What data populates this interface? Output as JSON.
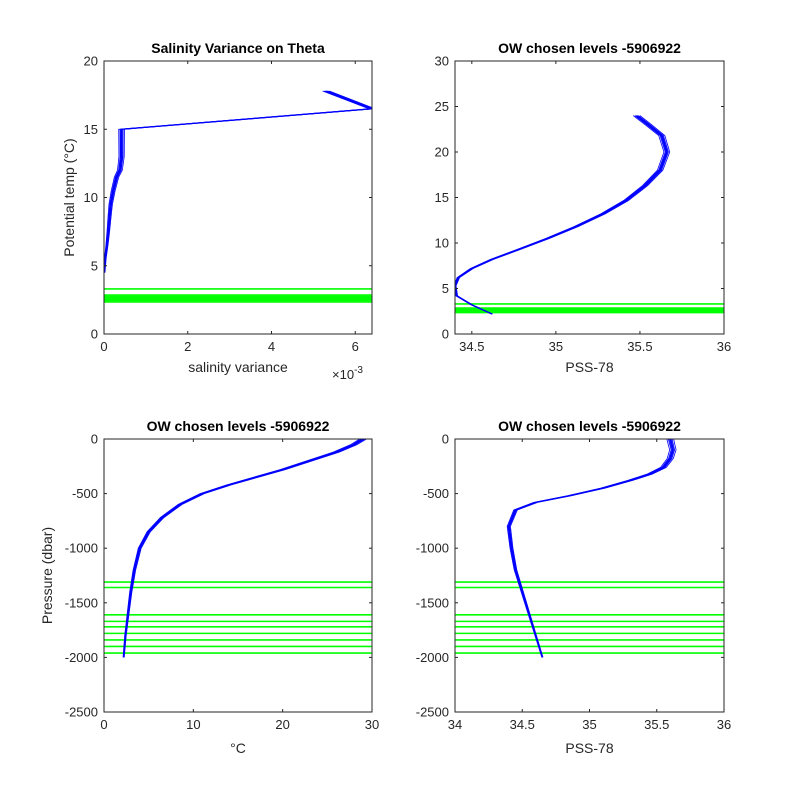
{
  "chart_data": [
    {
      "id": "variance",
      "type": "line",
      "title": "Salinity Variance on Theta",
      "xlabel": "salinity variance",
      "ylabel": "Potential temp (°C)",
      "x_exponent_label": "×10",
      "x_exponent_value": "-3",
      "xlim": [
        0,
        0.0064
      ],
      "ylim": [
        0,
        20
      ],
      "xticks": [
        0,
        0.002,
        0.004,
        0.006
      ],
      "xtick_labels": [
        "0",
        "2",
        "4",
        "6"
      ],
      "yticks": [
        0,
        5,
        10,
        15,
        20
      ],
      "ytick_labels": [
        "0",
        "5",
        "10",
        "15",
        "20"
      ],
      "series": [
        {
          "color": "#0000ff",
          "x": [
            1e-05,
            3e-05,
            7e-05,
            0.0001,
            0.00013,
            0.00016,
            0.00022,
            0.0003,
            0.00038,
            0.00042,
            0.00042,
            0.0064,
            0.0053
          ],
          "y": [
            4.5,
            5.5,
            6.5,
            7.4,
            8.5,
            9.5,
            10.5,
            11.5,
            12.0,
            13.0,
            15.0,
            16.5,
            17.8
          ]
        }
      ],
      "hlines": [
        2.35,
        2.45,
        2.55,
        2.65,
        2.75,
        2.85,
        3.3
      ],
      "hline_color": "#00ff00"
    },
    {
      "id": "theta_sal",
      "type": "line",
      "title": "OW chosen levels -5906922",
      "xlabel": "PSS-78",
      "ylabel": "",
      "xlim": [
        34.4,
        36
      ],
      "ylim": [
        0,
        30
      ],
      "xticks": [
        34.5,
        35,
        35.5,
        36
      ],
      "xtick_labels": [
        "34.5",
        "35",
        "35.5",
        "36"
      ],
      "yticks": [
        0,
        5,
        10,
        15,
        20,
        25,
        30
      ],
      "ytick_labels": [
        "0",
        "5",
        "10",
        "15",
        "20",
        "25",
        "30"
      ],
      "series": [
        {
          "color": "#0000ff",
          "x": [
            34.62,
            34.5,
            34.41,
            34.4,
            34.42,
            34.5,
            34.62,
            34.78,
            34.95,
            35.12,
            35.28,
            35.42,
            35.53,
            35.62,
            35.66,
            35.63,
            35.55,
            35.48
          ],
          "y": [
            2.2,
            3.2,
            4.2,
            5.3,
            6.2,
            7.2,
            8.2,
            9.3,
            10.5,
            11.8,
            13.2,
            14.7,
            16.3,
            18.0,
            20.0,
            21.8,
            23.0,
            24.0
          ]
        }
      ],
      "hlines": [
        2.35,
        2.45,
        2.55,
        2.65,
        2.75,
        2.85,
        3.3
      ],
      "hline_color": "#00ff00"
    },
    {
      "id": "pres_temp",
      "type": "line",
      "title": "OW chosen levels -5906922",
      "xlabel": "°C",
      "ylabel": "Pressure (dbar)",
      "xlim": [
        0,
        30
      ],
      "ylim": [
        -2500,
        0
      ],
      "xticks": [
        0,
        10,
        20,
        30
      ],
      "xtick_labels": [
        "0",
        "10",
        "20",
        "30"
      ],
      "yticks": [
        -2500,
        -2000,
        -1500,
        -1000,
        -500,
        0
      ],
      "ytick_labels": [
        "-2500",
        "-2000",
        "-1500",
        "-1000",
        "-500",
        "0"
      ],
      "series": [
        {
          "color": "#0000ff",
          "x": [
            2.2,
            2.4,
            2.7,
            3.0,
            3.4,
            4.0,
            5.0,
            6.5,
            8.5,
            11.0,
            14.0,
            17.0,
            20.0,
            23.0,
            26.0,
            28.0,
            29.0
          ],
          "y": [
            -2000,
            -1800,
            -1600,
            -1400,
            -1200,
            -1000,
            -850,
            -720,
            -600,
            -500,
            -420,
            -350,
            -280,
            -200,
            -120,
            -50,
            0
          ]
        }
      ],
      "hlines": [
        -1310,
        -1360,
        -1610,
        -1670,
        -1720,
        -1780,
        -1840,
        -1900,
        -1960
      ],
      "hline_color": "#00ff00"
    },
    {
      "id": "pres_sal",
      "type": "line",
      "title": "OW chosen levels -5906922",
      "xlabel": "PSS-78",
      "ylabel": "",
      "xlim": [
        34,
        36
      ],
      "ylim": [
        -2500,
        0
      ],
      "xticks": [
        34,
        34.5,
        35,
        35.5,
        36
      ],
      "xtick_labels": [
        "34",
        "34.5",
        "35",
        "35.5",
        "36"
      ],
      "yticks": [
        -2500,
        -2000,
        -1500,
        -1000,
        -500,
        0
      ],
      "ytick_labels": [
        "-2500",
        "-2000",
        "-1500",
        "-1000",
        "-500",
        "0"
      ],
      "series": [
        {
          "color": "#0000ff",
          "x": [
            34.65,
            34.6,
            34.55,
            34.5,
            34.45,
            34.42,
            34.4,
            34.45,
            34.6,
            34.85,
            35.1,
            35.3,
            35.45,
            35.55,
            35.6,
            35.62,
            35.6
          ],
          "y": [
            -2000,
            -1800,
            -1600,
            -1400,
            -1200,
            -1000,
            -800,
            -650,
            -580,
            -520,
            -450,
            -380,
            -320,
            -260,
            -180,
            -100,
            0
          ]
        }
      ],
      "hlines": [
        -1310,
        -1360,
        -1610,
        -1670,
        -1720,
        -1780,
        -1840,
        -1900,
        -1960
      ],
      "hline_color": "#00ff00"
    }
  ]
}
